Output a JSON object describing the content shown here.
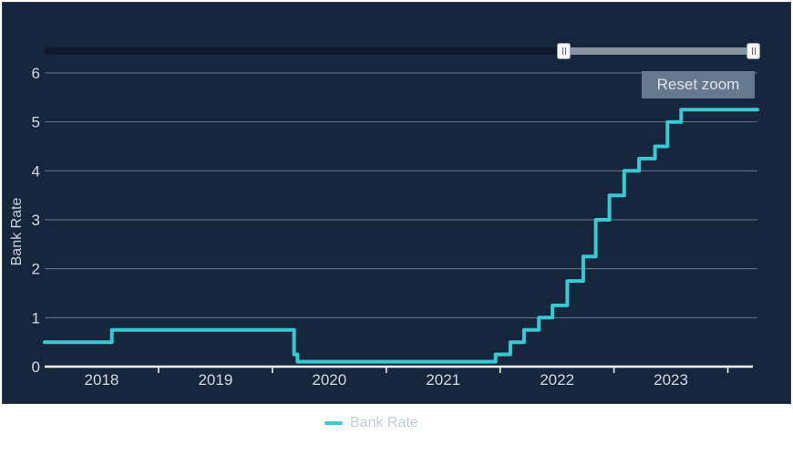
{
  "ui": {
    "reset_zoom_label": "Reset zoom",
    "y_axis_title": "Bank Rate",
    "legend_label": "Bank Rate"
  },
  "colors": {
    "background": "#15263d",
    "line": "#39c9d3",
    "grid": "rgba(255,255,255,0.38)",
    "axis": "#ffffff",
    "label": "#d4dae0",
    "button_bg": "#66788d",
    "button_text": "#dde3ea",
    "nav_track": "#0f1a2c",
    "nav_thumb": "#8893a1",
    "legend_text": "#c2cad7"
  },
  "navigator": {
    "selected_range_start_fraction": 0.73,
    "selected_range_end_fraction": 1.0,
    "handles": 2
  },
  "chart_data": {
    "type": "line",
    "step": true,
    "title": "",
    "xlabel": "",
    "ylabel": "Bank Rate",
    "grid": true,
    "legend": [
      "Bank Rate"
    ],
    "legend_position": "bottom",
    "xlim": [
      2018.0,
      2024.26
    ],
    "ylim": [
      0,
      6
    ],
    "y_ticks": [
      0,
      1,
      2,
      3,
      4,
      5,
      6
    ],
    "x_ticks": [
      2019,
      2020,
      2021,
      2022,
      2023,
      2024
    ],
    "x_label_positions": [
      2018.5,
      2019.5,
      2020.5,
      2021.5,
      2022.5,
      2023.5
    ],
    "x_tick_labels": [
      "2018",
      "2019",
      "2020",
      "2021",
      "2022",
      "2023"
    ],
    "series": [
      {
        "name": "Bank Rate",
        "color": "#39c9d3",
        "step_points_year_rate": [
          [
            2018.0,
            0.5
          ],
          [
            2018.59,
            0.75
          ],
          [
            2020.19,
            0.25
          ],
          [
            2020.22,
            0.1
          ],
          [
            2021.96,
            0.25
          ],
          [
            2022.09,
            0.5
          ],
          [
            2022.21,
            0.75
          ],
          [
            2022.34,
            1.0
          ],
          [
            2022.46,
            1.25
          ],
          [
            2022.59,
            1.75
          ],
          [
            2022.73,
            2.25
          ],
          [
            2022.84,
            3.0
          ],
          [
            2022.96,
            3.5
          ],
          [
            2023.09,
            4.0
          ],
          [
            2023.22,
            4.25
          ],
          [
            2023.36,
            4.5
          ],
          [
            2023.47,
            5.0
          ],
          [
            2023.59,
            5.25
          ]
        ],
        "end_x": 2024.26,
        "end_value": 5.25
      }
    ]
  }
}
